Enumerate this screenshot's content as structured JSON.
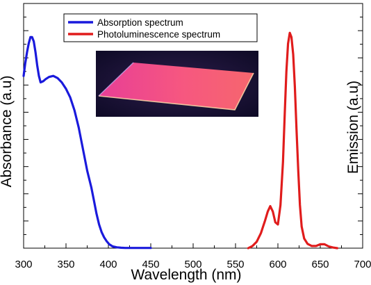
{
  "chart_data": {
    "type": "line",
    "title": "",
    "xlabel": "Wavelength (nm)",
    "ylabel_left": "Absorbance (a.u)",
    "ylabel_right": "Emission (a.u)",
    "xlim": [
      300,
      700
    ],
    "ylim": [
      0,
      1
    ],
    "x_ticks": [
      300,
      350,
      400,
      450,
      500,
      550,
      600,
      650,
      700
    ],
    "legend_position": "top-center",
    "grid": false,
    "inset_photo": "glowing-red-film-on-glass-slide",
    "series": [
      {
        "name": "Absorption spectrum",
        "color": "#1a1adc",
        "axis": "left",
        "x": [
          300,
          302,
          304,
          306,
          308,
          310,
          312,
          314,
          316,
          318,
          320,
          323,
          326,
          330,
          335,
          340,
          345,
          350,
          355,
          360,
          365,
          370,
          375,
          380,
          383,
          386,
          389,
          392,
          395,
          398,
          401,
          405,
          410,
          415,
          420,
          430,
          440,
          450
        ],
        "y": [
          0.8,
          0.86,
          0.91,
          0.95,
          0.98,
          0.98,
          0.96,
          0.91,
          0.85,
          0.8,
          0.77,
          0.775,
          0.785,
          0.795,
          0.8,
          0.79,
          0.77,
          0.74,
          0.7,
          0.64,
          0.56,
          0.46,
          0.36,
          0.28,
          0.22,
          0.16,
          0.11,
          0.075,
          0.05,
          0.032,
          0.018,
          0.008,
          0.004,
          0.002,
          0.001,
          0.001,
          0.001,
          0.001
        ]
      },
      {
        "name": "Photoluminescence spectrum",
        "color": "#e01c1c",
        "axis": "right",
        "x": [
          565,
          570,
          575,
          580,
          585,
          588,
          591,
          594,
          597,
          600,
          603,
          606,
          608,
          610,
          612,
          614,
          616,
          618,
          620,
          622,
          624,
          626,
          628,
          631,
          635,
          640,
          645,
          650,
          655,
          660,
          665,
          670
        ],
        "y": [
          0.0,
          0.01,
          0.03,
          0.07,
          0.13,
          0.17,
          0.195,
          0.17,
          0.12,
          0.11,
          0.2,
          0.4,
          0.62,
          0.82,
          0.95,
          1.0,
          0.98,
          0.9,
          0.75,
          0.55,
          0.36,
          0.2,
          0.1,
          0.045,
          0.02,
          0.01,
          0.01,
          0.018,
          0.018,
          0.008,
          0.003,
          0.0
        ]
      }
    ]
  }
}
